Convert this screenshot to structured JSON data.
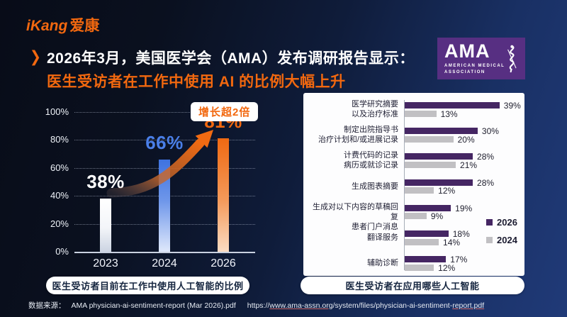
{
  "brand": {
    "name_en": "iKang",
    "name_cn": "爱康",
    "color": "#f2680f"
  },
  "header": {
    "bullet": "❯",
    "title_line1": "2026年3月，美国医学会（AMA）发布调研报告显示：",
    "title_line2": "医生受访者在工作中使用 AI 的比例大幅上升"
  },
  "ama_logo": {
    "acronym": "AMA",
    "subtext_line1": "AMERICAN MEDICAL",
    "subtext_line2": "ASSOCIATION",
    "bg_color": "#572f82"
  },
  "badge": {
    "label": "增长超2倍"
  },
  "captions": {
    "left": "医生受访者目前在工作中使用人工智能的比例",
    "right": "医生受访者在应用哪些人工智能"
  },
  "source": {
    "label": "数据来源：",
    "file": "AMA physician-ai-sentiment-report (Mar 2026).pdf",
    "url_scheme": "https://",
    "url_domain": "www.ama-assn.org",
    "url_path": "/system/files/physician-ai-sentiment-",
    "url_file": "report.pdf"
  },
  "chart_data": [
    {
      "type": "bar",
      "title": "医生受访者目前在工作中使用人工智能的比例",
      "categories": [
        "2023",
        "2024",
        "2026"
      ],
      "values": [
        38,
        66,
        81
      ],
      "value_labels": [
        "38%",
        "66%",
        "81%"
      ],
      "xlabel": "",
      "ylabel": "",
      "ylim": [
        0,
        100
      ],
      "yticks": [
        100,
        80,
        60,
        40,
        20,
        0
      ],
      "ytick_labels": [
        "100%",
        "80%",
        "60%",
        "40%",
        "20%",
        "0%"
      ],
      "grid": "horizontal-dotted",
      "bar_colors": [
        "#ffffff",
        "#4a7fe8",
        "#f2680f"
      ],
      "annotation": {
        "text": "增长超2倍",
        "arrow": "curved orange arrow from 2023 bar to 2026 value"
      }
    },
    {
      "type": "bar",
      "orientation": "horizontal",
      "title": "医生受访者在应用哪些人工智能",
      "categories": [
        [
          "医学研究摘要",
          "以及治疗标准"
        ],
        [
          "制定出院指导书",
          "治疗计划和/或进展记录"
        ],
        [
          "计费代码的记录",
          "病历或就诊记录"
        ],
        [
          "生成图表摘要"
        ],
        [
          "生成对以下内容的草稿回复",
          "患者门户消息"
        ],
        [
          "翻译服务"
        ],
        [
          "辅助诊断"
        ]
      ],
      "series": [
        {
          "name": "2026",
          "color": "#452663",
          "values": [
            39,
            30,
            28,
            28,
            19,
            18,
            17
          ]
        },
        {
          "name": "2024",
          "color": "#c1c0c3",
          "values": [
            13,
            20,
            21,
            12,
            9,
            14,
            12
          ]
        }
      ],
      "xlim": [
        0,
        45
      ],
      "legend_position": "right",
      "grid": "off"
    }
  ]
}
